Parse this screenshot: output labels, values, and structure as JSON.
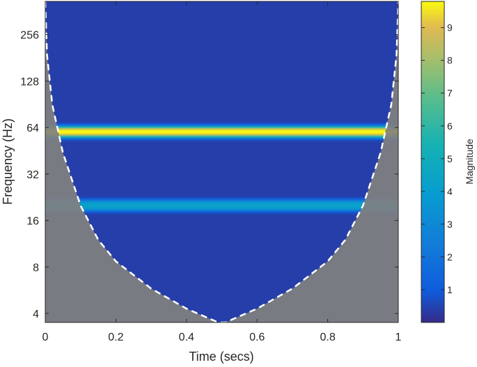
{
  "chart_data": {
    "type": "heatmap",
    "title": "",
    "xlabel": "Time (secs)",
    "ylabel": "Frequency (Hz)",
    "y_scale": "log2",
    "xlim": [
      0,
      1
    ],
    "ylim": [
      3.5,
      420
    ],
    "x_ticks": [
      0,
      0.2,
      0.4,
      0.6,
      0.8,
      1
    ],
    "x_tick_labels": [
      "0",
      "0.2",
      "0.4",
      "0.6",
      "0.8",
      "1"
    ],
    "y_ticks": [
      4,
      8,
      16,
      32,
      64,
      128,
      256
    ],
    "y_tick_labels": [
      "4",
      "8",
      "16",
      "32",
      "64",
      "128",
      "256"
    ],
    "colorbar": {
      "label": "Magnitude",
      "range": [
        0,
        9.8
      ],
      "ticks": [
        1,
        2,
        3,
        4,
        5,
        6,
        7,
        8,
        9
      ],
      "tick_labels": [
        "1",
        "2",
        "3",
        "4",
        "5",
        "6",
        "7",
        "8",
        "9"
      ],
      "colormap": "parula"
    },
    "background_magnitude": 0.4,
    "bands": [
      {
        "center_hz": 60,
        "magnitude": 9.8,
        "half_width_octaves": 0.12
      },
      {
        "center_hz": 20,
        "magnitude": 4.3,
        "half_width_octaves": 0.12
      }
    ],
    "cone_of_influence": {
      "style": "white dashed line",
      "points": [
        [
          0.0,
          420
        ],
        [
          0.005,
          190
        ],
        [
          0.02,
          90
        ],
        [
          0.05,
          44
        ],
        [
          0.1,
          20
        ],
        [
          0.15,
          12
        ],
        [
          0.2,
          8.7
        ],
        [
          0.3,
          5.8
        ],
        [
          0.4,
          4.3
        ],
        [
          0.49,
          3.5
        ],
        [
          0.5,
          3.5
        ],
        [
          0.51,
          3.5
        ],
        [
          0.6,
          4.3
        ],
        [
          0.7,
          5.8
        ],
        [
          0.8,
          8.7
        ],
        [
          0.85,
          12
        ],
        [
          0.9,
          20
        ],
        [
          0.95,
          44
        ],
        [
          0.98,
          90
        ],
        [
          0.995,
          190
        ],
        [
          1.0,
          420
        ]
      ],
      "outside_shading_color": "#808080"
    },
    "grid": false,
    "colors": {
      "low": "#352a87",
      "mid": "#21b1bf",
      "high": "#f9fb0e",
      "coi_line": "#ffffff",
      "shading": "#808080"
    }
  }
}
